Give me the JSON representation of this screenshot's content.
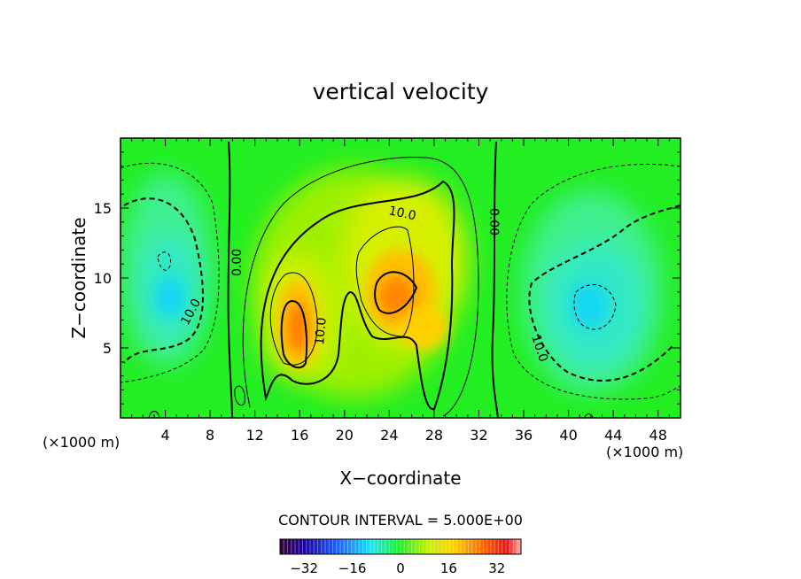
{
  "chart_data": {
    "type": "heatmap",
    "title": "vertical velocity",
    "xlabel": "X−coordinate",
    "ylabel": "Z−coordinate",
    "x_unit": "(×1000 m)",
    "y_unit": "(×1000 m)",
    "xlim": [
      0,
      50
    ],
    "ylim": [
      0,
      20
    ],
    "x_ticks": [
      4,
      8,
      12,
      16,
      20,
      24,
      28,
      32,
      36,
      40,
      44,
      48
    ],
    "x_tick_labels": [
      "4",
      "8",
      "12",
      "16",
      "20",
      "24",
      "28",
      "32",
      "36",
      "40",
      "44",
      "48"
    ],
    "y_ticks": [
      5,
      10,
      15
    ],
    "y_tick_labels": [
      "5",
      "10",
      "15"
    ],
    "contour_interval_label": "CONTOUR INTERVAL = 5.000E+00",
    "contour_labels": [
      "10.0",
      "0.00",
      "10.0",
      "0.00",
      "10.0",
      "10.0"
    ],
    "colorbar": {
      "range": [
        -40,
        40
      ],
      "ticks": [
        -32,
        -16,
        0,
        16,
        32
      ],
      "tick_labels": [
        "−32",
        "−16",
        "0",
        "16",
        "32"
      ]
    },
    "features": [
      {
        "kind": "updraft",
        "x": 15.8,
        "z": 6.8,
        "peak": 24
      },
      {
        "kind": "updraft",
        "x": 24.6,
        "z": 9.2,
        "peak": 22
      },
      {
        "kind": "downdraft",
        "x": 5.5,
        "z": 9.5,
        "peak": -14
      },
      {
        "kind": "downdraft",
        "x": 42.0,
        "z": 8.0,
        "peak": -14
      }
    ]
  }
}
